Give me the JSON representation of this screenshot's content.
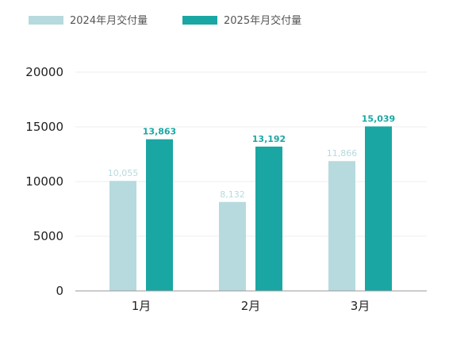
{
  "chart_data": {
    "type": "bar",
    "categories": [
      "1月",
      "2月",
      "3月"
    ],
    "series": [
      {
        "name": "2024年月交付量",
        "values": [
          10055,
          8132,
          11866
        ],
        "labels": [
          "10,055",
          "8,132",
          "11,866"
        ],
        "color": "#b7dade"
      },
      {
        "name": "2025年月交付量",
        "values": [
          13863,
          13192,
          15039
        ],
        "labels": [
          "13,863",
          "13,192",
          "15,039"
        ],
        "color": "#1aa7a4"
      }
    ],
    "yticks": [
      "0",
      "5000",
      "10000",
      "15000",
      "20000"
    ],
    "ylim": [
      0,
      20000
    ],
    "grid": true,
    "legend": "top-left"
  }
}
